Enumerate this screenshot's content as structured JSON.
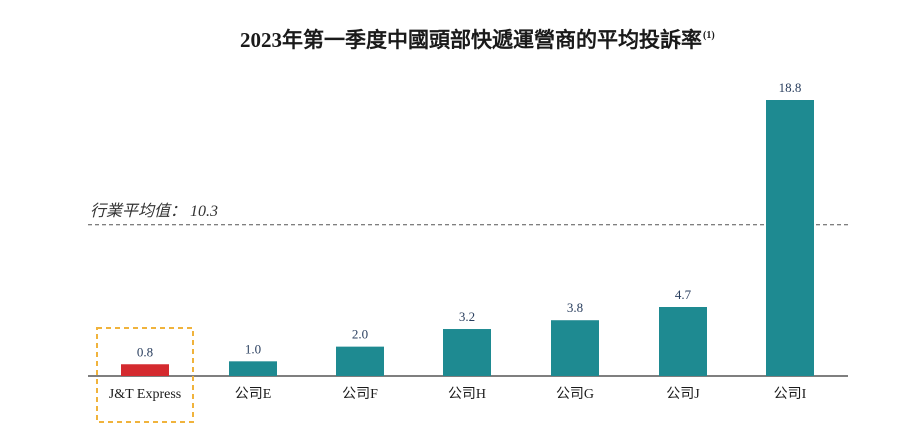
{
  "colors": {
    "bar": "#1e8a91",
    "highlight_bar": "#d42a2f",
    "highlight_box": "#f0b33c",
    "average_line": "#555555",
    "axis": "#333333"
  },
  "chart_data": {
    "type": "bar",
    "title": "2023年第一季度中國頭部快遞運營商的平均投訴率",
    "title_note": "(1)",
    "xlabel": "",
    "ylabel": "",
    "ylim": [
      0,
      18.8
    ],
    "grid": false,
    "categories": [
      "J&T Express",
      "公司E",
      "公司F",
      "公司H",
      "公司G",
      "公司J",
      "公司I"
    ],
    "values": [
      0.8,
      1.0,
      2.0,
      3.2,
      3.8,
      4.7,
      18.8
    ],
    "value_labels": [
      "0.8",
      "1.0",
      "2.0",
      "3.2",
      "3.8",
      "4.7",
      "18.8"
    ],
    "highlight_category": "J&T Express",
    "reference_line": {
      "label": "行業平均值： 10.3",
      "value": 10.3,
      "style": "dashed"
    }
  }
}
